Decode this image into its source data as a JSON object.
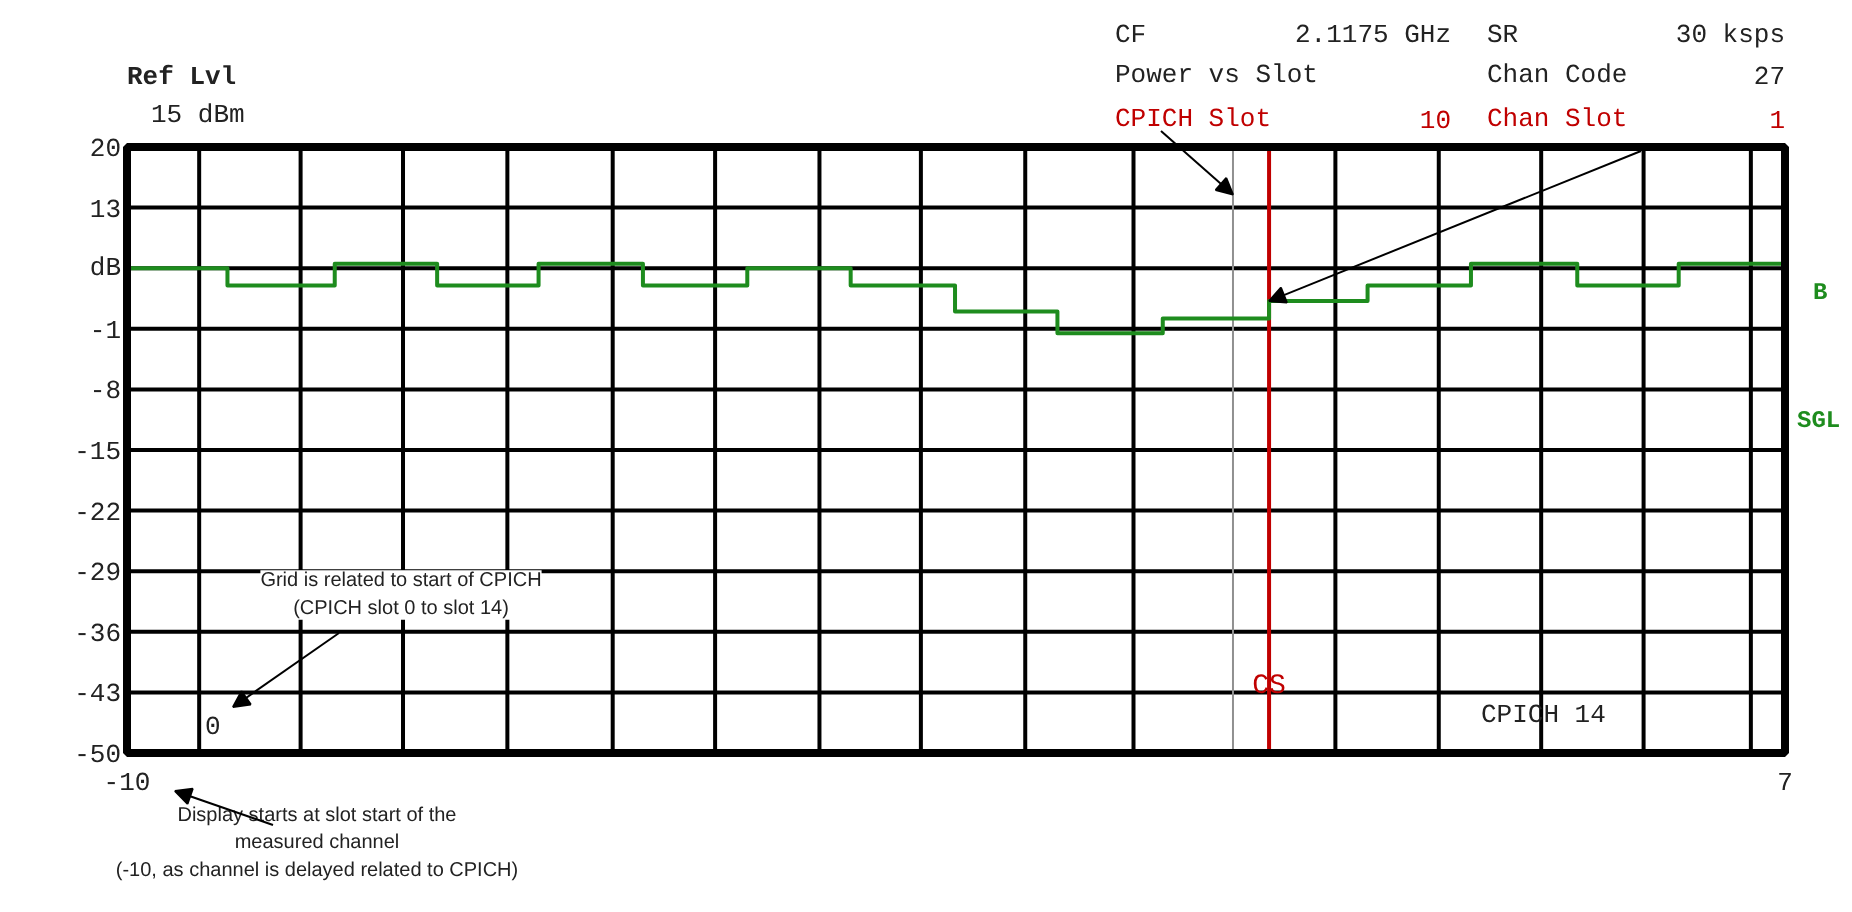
{
  "chart_data": {
    "type": "step",
    "x": [
      -10,
      -8.97,
      -7.87,
      -6.82,
      -5.78,
      -4.71,
      -3.64,
      -2.58,
      -1.51,
      -0.46,
      0.62,
      1.71,
      2.72,
      3.78,
      4.87,
      5.91,
      7
    ],
    "series": [
      {
        "color": "#1e8c1e",
        "values": [
          6,
          4,
          6.5,
          4,
          6.5,
          4,
          6,
          4,
          1,
          -1.5,
          0.2,
          2.2,
          4,
          6.5,
          4,
          6.5,
          6.5
        ]
      }
    ],
    "xlim": [
      -10,
      7
    ],
    "xticks": [
      -10,
      {
        "value": -9.26,
        "label": null
      },
      {
        "value": -8.22,
        "label": null
      },
      {
        "value": -7.17,
        "label": null
      },
      {
        "value": -6.1,
        "label": null
      },
      {
        "value": -5.02,
        "label": null
      },
      {
        "value": -3.97,
        "label": null
      },
      {
        "value": -2.9,
        "label": null
      },
      {
        "value": -1.86,
        "label": null
      },
      {
        "value": -0.79,
        "label": null
      },
      {
        "value": 0.32,
        "label": null
      },
      {
        "value": 2.39,
        "label": null
      },
      {
        "value": 3.45,
        "label": null
      },
      {
        "value": 4.5,
        "label": null
      },
      {
        "value": 5.55,
        "label": null
      },
      {
        "value": 6.65,
        "label": null
      },
      7
    ],
    "ylim": [
      -50,
      20
    ],
    "yticks": [
      20,
      13,
      {
        "value": 6,
        "label": "dB"
      },
      -1,
      -8,
      -15,
      -22,
      -29,
      -36,
      -43,
      -50
    ],
    "grid": true,
    "ref_lines": [
      {
        "axis": "x",
        "value": 1.34,
        "label": null,
        "color": "#909090"
      },
      {
        "axis": "x",
        "value": 1.71,
        "label": "CS",
        "color": "#c00000"
      }
    ],
    "annotations": [
      "Ref Lvl",
      "15 dBm",
      "CF",
      "2.1175 GHz",
      "SR",
      "30 ksps",
      "Power vs Slot",
      "Chan Code",
      "27",
      {
        "text": "CPICH Slot",
        "x": 1.34,
        "y": 14.5
      },
      "10",
      {
        "text": "Chan Slot",
        "x": 1.71,
        "y": 2.2
      },
      "1",
      "B",
      "SGL",
      "0",
      "CPICH  14",
      "Grid is related to start of CPICH\n(CPICH slot 0 to slot 14)",
      "Display starts at slot start of the\nmeasured channel\n(-10, as channel is delayed related to CPICH)"
    ]
  }
}
